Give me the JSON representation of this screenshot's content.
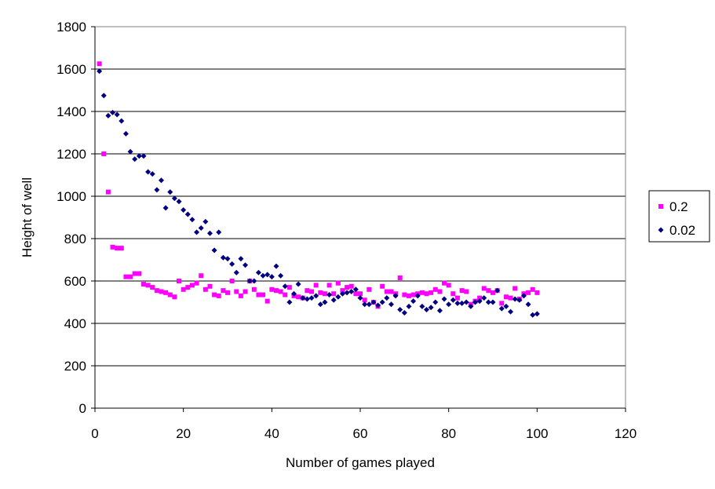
{
  "chart_data": {
    "type": "scatter",
    "title": "",
    "xlabel": "Number of games played",
    "ylabel": "Height of well",
    "xlim": [
      0,
      120
    ],
    "ylim": [
      0,
      1800
    ],
    "x_ticks": [
      "0",
      "20",
      "40",
      "60",
      "80",
      "100",
      "120"
    ],
    "y_ticks": [
      "0",
      "200",
      "400",
      "600",
      "800",
      "1000",
      "1200",
      "1400",
      "1600",
      "1800"
    ],
    "grid": "horizontal major gridlines",
    "legend_position": "right",
    "series": [
      {
        "name": "0.2",
        "color": "#ff00ff",
        "marker": "square",
        "x": [
          1,
          2,
          3,
          4,
          5,
          6,
          7,
          8,
          9,
          10,
          11,
          12,
          13,
          14,
          15,
          16,
          17,
          18,
          19,
          20,
          21,
          22,
          23,
          24,
          25,
          26,
          27,
          28,
          29,
          30,
          31,
          32,
          33,
          34,
          35,
          36,
          37,
          38,
          39,
          40,
          41,
          42,
          43,
          44,
          45,
          46,
          47,
          48,
          49,
          50,
          51,
          52,
          53,
          54,
          55,
          56,
          57,
          58,
          59,
          60,
          61,
          62,
          63,
          64,
          65,
          66,
          67,
          68,
          69,
          70,
          71,
          72,
          73,
          74,
          75,
          76,
          77,
          78,
          79,
          80,
          81,
          82,
          83,
          84,
          85,
          86,
          87,
          88,
          89,
          90,
          91,
          92,
          93,
          94,
          95,
          96,
          97,
          98,
          99,
          100
        ],
        "y": [
          1625,
          1200,
          1020,
          760,
          755,
          755,
          620,
          620,
          635,
          635,
          585,
          580,
          570,
          555,
          550,
          545,
          535,
          525,
          600,
          560,
          570,
          580,
          590,
          625,
          560,
          575,
          535,
          530,
          555,
          545,
          600,
          550,
          530,
          550,
          600,
          560,
          535,
          535,
          505,
          560,
          555,
          550,
          535,
          570,
          530,
          525,
          520,
          555,
          550,
          580,
          545,
          540,
          580,
          540,
          590,
          555,
          570,
          575,
          540,
          540,
          510,
          560,
          500,
          480,
          575,
          550,
          550,
          540,
          615,
          535,
          530,
          535,
          540,
          545,
          540,
          545,
          560,
          550,
          590,
          580,
          540,
          520,
          555,
          550,
          490,
          505,
          520,
          565,
          555,
          545,
          555,
          495,
          525,
          520,
          565,
          515,
          540,
          545,
          560,
          545
        ]
      },
      {
        "name": "0.02",
        "color": "#000080",
        "marker": "diamond",
        "x": [
          1,
          2,
          3,
          4,
          5,
          6,
          7,
          8,
          9,
          10,
          11,
          12,
          13,
          14,
          15,
          16,
          17,
          18,
          19,
          20,
          21,
          22,
          23,
          24,
          25,
          26,
          27,
          28,
          29,
          30,
          31,
          32,
          33,
          34,
          35,
          36,
          37,
          38,
          39,
          40,
          41,
          42,
          43,
          44,
          45,
          46,
          47,
          48,
          49,
          50,
          51,
          52,
          53,
          54,
          55,
          56,
          57,
          58,
          59,
          60,
          61,
          62,
          63,
          64,
          65,
          66,
          67,
          68,
          69,
          70,
          71,
          72,
          73,
          74,
          75,
          76,
          77,
          78,
          79,
          80,
          81,
          82,
          83,
          84,
          85,
          86,
          87,
          88,
          89,
          90,
          91,
          92,
          93,
          94,
          95,
          96,
          97,
          98,
          99,
          100
        ],
        "y": [
          1590,
          1475,
          1380,
          1395,
          1385,
          1355,
          1295,
          1210,
          1175,
          1190,
          1190,
          1115,
          1105,
          1030,
          1075,
          945,
          1020,
          990,
          975,
          935,
          915,
          890,
          830,
          850,
          880,
          825,
          745,
          830,
          710,
          705,
          680,
          640,
          705,
          675,
          600,
          600,
          640,
          625,
          630,
          620,
          670,
          625,
          575,
          500,
          540,
          585,
          520,
          515,
          520,
          530,
          490,
          500,
          535,
          510,
          525,
          540,
          545,
          550,
          560,
          520,
          490,
          490,
          500,
          485,
          500,
          520,
          490,
          530,
          465,
          450,
          480,
          505,
          530,
          480,
          465,
          475,
          500,
          460,
          515,
          490,
          510,
          495,
          495,
          500,
          480,
          500,
          505,
          520,
          500,
          500,
          555,
          470,
          480,
          455,
          515,
          510,
          530,
          490,
          440,
          445
        ]
      }
    ]
  }
}
